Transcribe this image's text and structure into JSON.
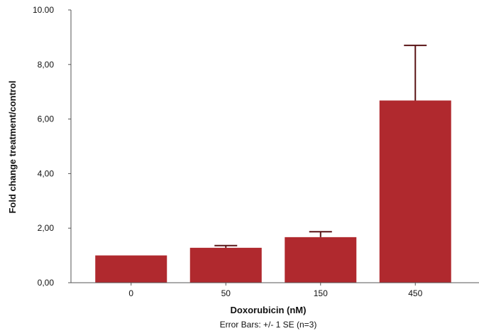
{
  "chart_data": {
    "type": "bar",
    "categories": [
      "0",
      "50",
      "150",
      "450"
    ],
    "values": [
      1.0,
      1.28,
      1.67,
      6.68
    ],
    "error_upper": [
      1.0,
      1.36,
      1.87,
      8.7
    ],
    "ytick_labels": [
      "0,00",
      "2,00",
      "4,00",
      "6,00",
      "8,00",
      "10.00"
    ],
    "ylim": [
      0,
      10
    ],
    "xlabel": "Doxorubicin (nM)",
    "ylabel": "Fold change treatment/control",
    "footnote": "Error Bars: +/- 1 SE (n=3)",
    "grid": false,
    "colors": {
      "bar": "#b0292e",
      "error_bar": "#5a1416",
      "axis": "#555555"
    }
  }
}
